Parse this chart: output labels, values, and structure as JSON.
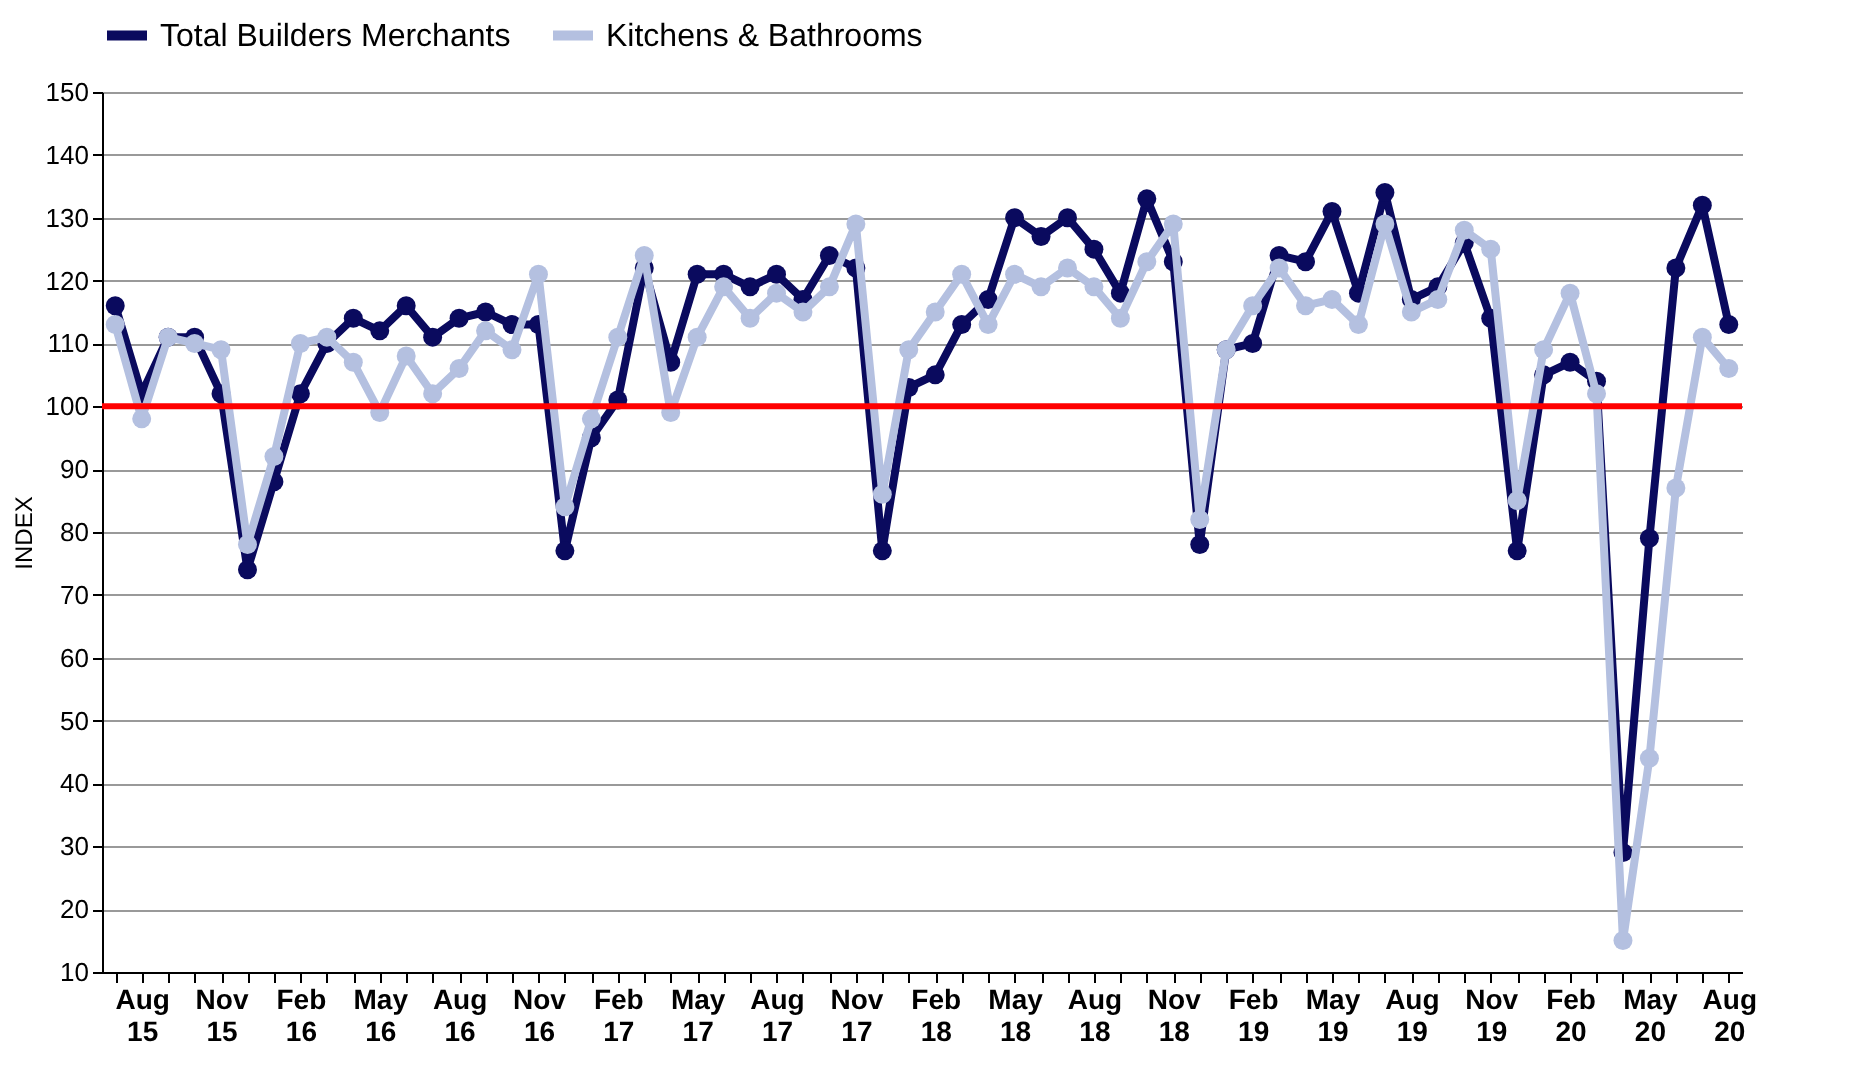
{
  "chart_data": {
    "type": "line",
    "ylabel": "INDEX",
    "categories": [
      null,
      "Aug 15",
      null,
      null,
      "Nov 15",
      null,
      null,
      "Feb 16",
      null,
      null,
      "May 16",
      null,
      null,
      "Aug 16",
      null,
      null,
      "Nov 16",
      null,
      null,
      "Feb 17",
      null,
      null,
      "May 17",
      null,
      null,
      "Aug 17",
      null,
      null,
      "Nov 17",
      null,
      null,
      "Feb 18",
      null,
      null,
      "May 18",
      null,
      null,
      "Aug 18",
      null,
      null,
      "Nov 18",
      null,
      null,
      "Feb 19",
      null,
      null,
      "May 19",
      null,
      null,
      "Aug 19",
      null,
      null,
      "Nov 19",
      null,
      null,
      "Feb 20",
      null,
      null,
      "May 20",
      null,
      null,
      "Aug 20"
    ],
    "series": [
      {
        "name": "Total Builders Merchants",
        "color": "#0a0a5e",
        "values": [
          116,
          102,
          111,
          111,
          102,
          74,
          88,
          102,
          110,
          114,
          112,
          116,
          111,
          114,
          115,
          113,
          113,
          77,
          95,
          101,
          122,
          107,
          121,
          121,
          119,
          121,
          117,
          124,
          122,
          77,
          103,
          105,
          113,
          117,
          130,
          127,
          130,
          125,
          118,
          133,
          123,
          78,
          109,
          110,
          124,
          123,
          131,
          118,
          134,
          117,
          119,
          126,
          114,
          77,
          105,
          107,
          104,
          29,
          79,
          122,
          132,
          113
        ]
      },
      {
        "name": "Kitchens & Bathrooms",
        "color": "#b4c0e0",
        "values": [
          113,
          98,
          111,
          110,
          109,
          78,
          92,
          110,
          111,
          107,
          99,
          108,
          102,
          106,
          112,
          109,
          121,
          84,
          98,
          111,
          124,
          99,
          111,
          119,
          114,
          118,
          115,
          119,
          129,
          86,
          109,
          115,
          121,
          113,
          121,
          119,
          122,
          119,
          114,
          123,
          129,
          82,
          109,
          116,
          122,
          116,
          117,
          113,
          129,
          115,
          117,
          128,
          125,
          85,
          109,
          118,
          102,
          15,
          44,
          87,
          111,
          106
        ]
      }
    ],
    "ylim": [
      10,
      150
    ],
    "yticks": [
      10,
      20,
      30,
      40,
      50,
      60,
      70,
      80,
      90,
      100,
      110,
      120,
      130,
      140,
      150
    ],
    "ref_lines": [
      {
        "axis": "y",
        "value": 100,
        "color": "#ff0000"
      }
    ],
    "grid": "y",
    "legend": "top",
    "marker": "circle",
    "line_style": "solid"
  }
}
